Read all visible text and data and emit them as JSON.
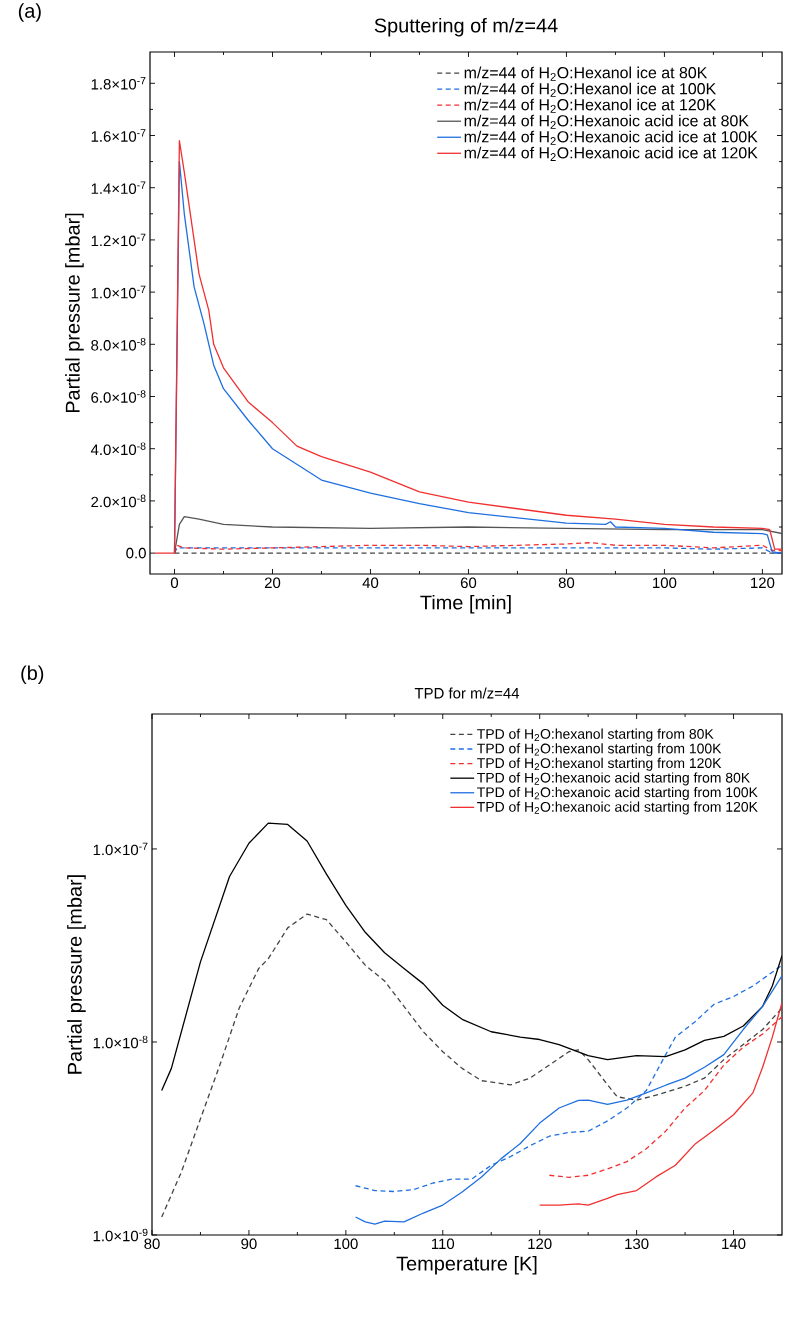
{
  "chart_data": [
    {
      "type": "line",
      "title": "Sputtering of m/z=44",
      "xlabel": "Time [min]",
      "ylabel": "Partial pressure [mbar]",
      "annotations": [
        "(a)"
      ],
      "xlim": [
        -5,
        124
      ],
      "ylim": [
        -8e-09,
        1.92e-07
      ],
      "xticks": [
        0,
        20,
        40,
        60,
        80,
        100,
        120
      ],
      "yticks": [
        {
          "value": 0,
          "label": "0.0"
        },
        {
          "value": 2e-08,
          "label": "2.0×10$^{-8}$"
        },
        {
          "value": 4e-08,
          "label": "4.0×10$^{-8}$"
        },
        {
          "value": 6e-08,
          "label": "6.0×10$^{-8}$"
        },
        {
          "value": 8e-08,
          "label": "8.0×10$^{-8}$"
        },
        {
          "value": 1e-07,
          "label": "1.0×10$^{-7}$"
        },
        {
          "value": 1.2e-07,
          "label": "1.2×10$^{-7}$"
        },
        {
          "value": 1.4e-07,
          "label": "1.4×10$^{-7}$"
        },
        {
          "value": 1.6e-07,
          "label": "1.6×10$^{-7}$"
        },
        {
          "value": 1.8e-07,
          "label": "1.8×10$^{-7}$"
        }
      ],
      "legend": "top right",
      "series": [
        {
          "name": "m/z=44 of H$_{2}$O:Hexanol ice at 80K",
          "color": "#444444",
          "line_style": "dashed",
          "x": [
            0,
            20,
            40,
            60,
            80,
            100,
            120,
            124
          ],
          "values": [
            0,
            0,
            0,
            0,
            0,
            0,
            0,
            0
          ]
        },
        {
          "name": "m/z=44 of H$_{2}$O:Hexanol ice at 100K",
          "color": "#1f6fe0",
          "line_style": "dashed",
          "x": [
            0,
            0.5,
            10,
            20,
            40,
            60,
            80,
            90,
            100,
            110,
            120,
            122,
            124
          ],
          "values": [
            0,
            2e-09,
            2e-09,
            2e-09,
            2e-09,
            2e-09,
            2e-09,
            2e-09,
            2e-09,
            1.5e-09,
            2e-09,
            0,
            0
          ]
        },
        {
          "name": "m/z=44 of H$_{2}$O:Hexanol ice at 120K",
          "color": "#f03030",
          "line_style": "dashed",
          "x": [
            0,
            0.5,
            2,
            10,
            20,
            30,
            40,
            50,
            60,
            70,
            80,
            85,
            90,
            100,
            110,
            120,
            122,
            124
          ],
          "values": [
            0,
            3e-09,
            2e-09,
            1.5e-09,
            2e-09,
            2.5e-09,
            3e-09,
            3e-09,
            2.5e-09,
            3e-09,
            3.5e-09,
            4e-09,
            3e-09,
            3e-09,
            2e-09,
            3e-09,
            1e-09,
            1e-09
          ]
        },
        {
          "name": "m/z=44 of H$_{2}$O:Hexanoic acid ice at 80K",
          "color": "#555555",
          "line_style": "solid",
          "x": [
            0,
            1,
            2,
            5,
            10,
            20,
            40,
            60,
            80,
            100,
            120,
            124
          ],
          "values": [
            0,
            1.1e-08,
            1.4e-08,
            1.3e-08,
            1.1e-08,
            1e-08,
            9.5e-09,
            1e-08,
            9.5e-09,
            9e-09,
            9e-09,
            7.5e-09
          ]
        },
        {
          "name": "m/z=44 of H$_{2}$O:Hexanoic acid ice at 100K",
          "color": "#1f6fe0",
          "line_style": "solid",
          "x": [
            0,
            1,
            2,
            4,
            6,
            8,
            10,
            15,
            20,
            25,
            30,
            40,
            50,
            60,
            70,
            80,
            88,
            89,
            90,
            100,
            110,
            120,
            121,
            122,
            124
          ],
          "values": [
            0,
            1.5e-07,
            1.3e-07,
            1.02e-07,
            8.8e-08,
            7.2e-08,
            6.3e-08,
            5.1e-08,
            4e-08,
            3.4e-08,
            2.8e-08,
            2.3e-08,
            1.9e-08,
            1.55e-08,
            1.35e-08,
            1.15e-08,
            1.1e-08,
            1.2e-08,
            1e-08,
            9.5e-09,
            8e-09,
            7.5e-09,
            7e-09,
            5e-10,
            0
          ]
        },
        {
          "name": "m/z=44 of H$_{2}$O:Hexanoic acid ice at 120K",
          "color": "#f03030",
          "line_style": "solid",
          "x": [
            -4,
            0,
            1,
            2,
            4,
            5,
            7,
            8,
            10,
            15,
            20,
            25,
            30,
            40,
            50,
            60,
            70,
            80,
            90,
            100,
            110,
            120,
            121.5,
            122.5,
            124
          ],
          "values": [
            0,
            0,
            1.58e-07,
            1.46e-07,
            1.2e-07,
            1.07e-07,
            9.3e-08,
            8e-08,
            7.1e-08,
            5.8e-08,
            5e-08,
            4.1e-08,
            3.7e-08,
            3.1e-08,
            2.35e-08,
            1.95e-08,
            1.7e-08,
            1.45e-08,
            1.3e-08,
            1.1e-08,
            1e-08,
            9.5e-09,
            9e-09,
            1.5e-09,
            1.5e-09
          ]
        }
      ]
    },
    {
      "type": "line",
      "title": "TPD for m/z=44",
      "xlabel": "Temperature [K]",
      "ylabel": "Partial pressure [mbar]",
      "annotations": [
        "(b)"
      ],
      "xlim": [
        80,
        145
      ],
      "ylim": [
        1e-09,
        5e-07
      ],
      "log": true,
      "xticks": [
        80,
        90,
        100,
        110,
        120,
        130,
        140
      ],
      "yticks": [
        {
          "value": 1e-09,
          "label": "1.0×10$^{-9}$"
        },
        {
          "value": 1e-08,
          "label": "1.0×10$^{-8}$"
        },
        {
          "value": 1e-07,
          "label": "1.0×10$^{-7}$"
        }
      ],
      "legend": "top right",
      "series": [
        {
          "name": "TPD of H$_{2}$O:hexanol starting from 80K",
          "color": "#444444",
          "line_style": "dashed",
          "x": [
            81,
            83,
            85,
            87,
            89,
            91,
            92,
            94,
            96,
            98,
            100,
            102,
            104,
            106,
            108,
            110,
            112,
            114,
            117,
            119,
            121,
            123,
            124,
            125,
            127,
            128,
            130,
            132,
            135,
            137,
            139,
            141,
            143,
            145
          ],
          "values": [
            1.24e-09,
            2.1e-09,
            4e-09,
            7.6e-09,
            1.5e-08,
            2.4e-08,
            2.7e-08,
            3.9e-08,
            4.6e-08,
            4.3e-08,
            3.3e-08,
            2.5e-08,
            2.07e-08,
            1.53e-08,
            1.13e-08,
            8.9e-09,
            7.3e-09,
            6.3e-09,
            6e-09,
            6.5e-09,
            7.6e-09,
            8.9e-09,
            9.1e-09,
            8.1e-09,
            6e-09,
            5.2e-09,
            5e-09,
            5.3e-09,
            5.9e-09,
            6.5e-09,
            8.1e-09,
            9.7e-09,
            1.16e-08,
            1.5e-08
          ]
        },
        {
          "name": "TPD of H$_{2}$O:hexanol starting from 100K",
          "color": "#1f6fe0",
          "line_style": "dashed",
          "x": [
            101,
            103,
            105,
            107,
            109,
            111,
            113,
            115,
            117,
            119,
            121,
            123,
            125,
            127,
            129,
            131,
            133,
            134,
            136,
            138,
            140,
            142,
            144,
            145
          ],
          "values": [
            1.8e-09,
            1.7e-09,
            1.68e-09,
            1.72e-09,
            1.86e-09,
            1.95e-09,
            1.95e-09,
            2.3e-09,
            2.55e-09,
            2.9e-09,
            3.25e-09,
            3.4e-09,
            3.45e-09,
            3.9e-09,
            4.55e-09,
            5.6e-09,
            8.6e-09,
            1.06e-08,
            1.27e-08,
            1.57e-08,
            1.72e-08,
            1.95e-08,
            2.3e-08,
            2.5e-08
          ]
        },
        {
          "name": "TPD of H$_{2}$O:hexanol starting from 120K",
          "color": "#f03030",
          "line_style": "dashed",
          "x": [
            121,
            123,
            125,
            127,
            129,
            131,
            133,
            135,
            137,
            139,
            141,
            143,
            145
          ],
          "values": [
            2.04e-09,
            1.99e-09,
            2.04e-09,
            2.2e-09,
            2.4e-09,
            2.8e-09,
            3.45e-09,
            4.55e-09,
            5.6e-09,
            7.6e-09,
            9.4e-09,
            1.1e-08,
            1.35e-08
          ]
        },
        {
          "name": "TPD of H$_{2}$O:hexanoic acid starting from 80K",
          "color": "#000000",
          "line_style": "solid",
          "x": [
            81,
            82,
            85,
            88,
            90,
            92,
            94,
            96,
            98,
            100,
            102,
            104,
            106,
            108,
            110,
            112,
            115,
            118,
            120,
            122,
            125,
            127,
            130,
            133,
            135,
            137,
            139,
            141,
            143,
            144,
            145
          ],
          "values": [
            5.6e-09,
            7.3e-09,
            2.6e-08,
            7.2e-08,
            1.07e-07,
            1.36e-07,
            1.34e-07,
            1.1e-07,
            7.4e-08,
            5.1e-08,
            3.7e-08,
            2.9e-08,
            2.4e-08,
            2e-08,
            1.55e-08,
            1.31e-08,
            1.13e-08,
            1.06e-08,
            1.03e-08,
            9.7e-09,
            8.5e-09,
            8.1e-09,
            8.5e-09,
            8.4e-09,
            9.1e-09,
            1.02e-08,
            1.07e-08,
            1.21e-08,
            1.53e-08,
            1.95e-08,
            2.8e-08
          ]
        },
        {
          "name": "TPD of H$_{2}$O:hexanoic acid starting from 100K",
          "color": "#1f6fe0",
          "line_style": "solid",
          "x": [
            101,
            102,
            103,
            104,
            106,
            108,
            110,
            112,
            114,
            116,
            118,
            120,
            122,
            124,
            125,
            127,
            129,
            131,
            133,
            135,
            137,
            139,
            141,
            143,
            145
          ],
          "values": [
            1.24e-09,
            1.17e-09,
            1.14e-09,
            1.18e-09,
            1.17e-09,
            1.3e-09,
            1.43e-09,
            1.67e-09,
            2e-09,
            2.48e-09,
            2.98e-09,
            3.8e-09,
            4.55e-09,
            4.98e-09,
            5e-09,
            4.75e-09,
            5e-09,
            5.45e-09,
            5.97e-09,
            6.5e-09,
            7.4e-09,
            8.6e-09,
            1.16e-08,
            1.53e-08,
            2.2e-08
          ]
        },
        {
          "name": "TPD of H$_{2}$O:hexanoic acid starting from 120K",
          "color": "#f03030",
          "line_style": "solid",
          "x": [
            120,
            122,
            124,
            125,
            127,
            128,
            130,
            132,
            134,
            136,
            138,
            140,
            142,
            143,
            144,
            145
          ],
          "values": [
            1.43e-09,
            1.43e-09,
            1.45e-09,
            1.43e-09,
            1.55e-09,
            1.62e-09,
            1.7e-09,
            2e-09,
            2.3e-09,
            2.95e-09,
            3.5e-09,
            4.2e-09,
            5.45e-09,
            7.4e-09,
            1.06e-08,
            1.6e-08
          ]
        }
      ]
    }
  ]
}
